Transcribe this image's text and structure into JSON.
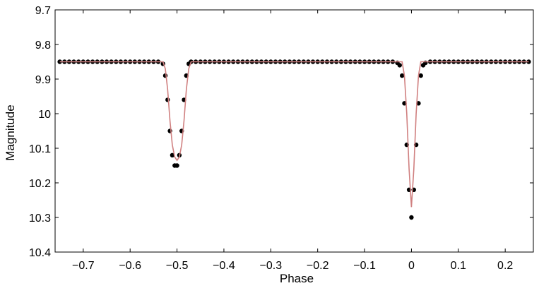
{
  "chart_data": {
    "type": "scatter",
    "title": "",
    "xlabel": "Phase",
    "ylabel": "Magnitude",
    "xlim": [
      -0.76,
      0.26
    ],
    "ylim": [
      10.4,
      9.7
    ],
    "y_axis_reversed": true,
    "grid": false,
    "legend": "none",
    "x_ticks": [
      {
        "value": -0.7,
        "label": "−0.7"
      },
      {
        "value": -0.6,
        "label": "−0.6"
      },
      {
        "value": -0.5,
        "label": "−0.5"
      },
      {
        "value": -0.4,
        "label": "−0.4"
      },
      {
        "value": -0.3,
        "label": "−0.3"
      },
      {
        "value": -0.2,
        "label": "−0.2"
      },
      {
        "value": -0.1,
        "label": "−0.1"
      },
      {
        "value": 0.0,
        "label": "0"
      },
      {
        "value": 0.1,
        "label": "0.1"
      },
      {
        "value": 0.2,
        "label": "0.2"
      }
    ],
    "y_ticks": [
      {
        "value": 9.7,
        "label": "9.7"
      },
      {
        "value": 9.8,
        "label": "9.8"
      },
      {
        "value": 9.9,
        "label": "9.9"
      },
      {
        "value": 10.0,
        "label": "10"
      },
      {
        "value": 10.1,
        "label": "10.1"
      },
      {
        "value": 10.2,
        "label": "10.2"
      },
      {
        "value": 10.3,
        "label": "10.3"
      },
      {
        "value": 10.4,
        "label": "10.4"
      }
    ],
    "series": [
      {
        "kind": "observations",
        "color": "#000000",
        "marker": "dot",
        "x": [
          -0.75,
          -0.74,
          -0.73,
          -0.72,
          -0.71,
          -0.7,
          -0.69,
          -0.68,
          -0.67,
          -0.66,
          -0.65,
          -0.64,
          -0.63,
          -0.62,
          -0.61,
          -0.6,
          -0.59,
          -0.58,
          -0.57,
          -0.56,
          -0.55,
          -0.54,
          -0.53,
          -0.525,
          -0.52,
          -0.515,
          -0.51,
          -0.505,
          -0.5,
          -0.495,
          -0.49,
          -0.485,
          -0.48,
          -0.475,
          -0.47,
          -0.46,
          -0.45,
          -0.44,
          -0.43,
          -0.42,
          -0.41,
          -0.4,
          -0.39,
          -0.38,
          -0.37,
          -0.36,
          -0.35,
          -0.34,
          -0.33,
          -0.32,
          -0.31,
          -0.3,
          -0.29,
          -0.28,
          -0.27,
          -0.26,
          -0.25,
          -0.24,
          -0.23,
          -0.22,
          -0.21,
          -0.2,
          -0.19,
          -0.18,
          -0.17,
          -0.16,
          -0.15,
          -0.14,
          -0.13,
          -0.12,
          -0.11,
          -0.1,
          -0.09,
          -0.08,
          -0.07,
          -0.06,
          -0.05,
          -0.04,
          -0.03,
          -0.025,
          -0.02,
          -0.015,
          -0.01,
          -0.005,
          0.0,
          0.005,
          0.01,
          0.015,
          0.02,
          0.025,
          0.03,
          0.04,
          0.05,
          0.06,
          0.07,
          0.08,
          0.09,
          0.1,
          0.11,
          0.12,
          0.13,
          0.14,
          0.15,
          0.16,
          0.17,
          0.18,
          0.19,
          0.2,
          0.21,
          0.22,
          0.23,
          0.24,
          0.25
        ],
        "y": [
          9.85,
          9.85,
          9.85,
          9.85,
          9.85,
          9.85,
          9.85,
          9.85,
          9.85,
          9.85,
          9.85,
          9.85,
          9.85,
          9.85,
          9.85,
          9.85,
          9.85,
          9.85,
          9.85,
          9.85,
          9.85,
          9.85,
          9.856,
          9.89,
          9.96,
          10.05,
          10.12,
          10.15,
          10.15,
          10.12,
          10.05,
          9.96,
          9.89,
          9.856,
          9.85,
          9.85,
          9.85,
          9.85,
          9.85,
          9.85,
          9.85,
          9.85,
          9.85,
          9.85,
          9.85,
          9.85,
          9.85,
          9.85,
          9.85,
          9.85,
          9.85,
          9.85,
          9.85,
          9.85,
          9.85,
          9.85,
          9.85,
          9.85,
          9.85,
          9.85,
          9.85,
          9.85,
          9.85,
          9.85,
          9.85,
          9.85,
          9.85,
          9.85,
          9.85,
          9.85,
          9.85,
          9.85,
          9.85,
          9.85,
          9.85,
          9.85,
          9.85,
          9.85,
          9.853,
          9.86,
          9.89,
          9.97,
          10.09,
          10.22,
          10.3,
          10.22,
          10.09,
          9.97,
          9.89,
          9.86,
          9.853,
          9.85,
          9.85,
          9.85,
          9.85,
          9.85,
          9.85,
          9.85,
          9.85,
          9.85,
          9.85,
          9.85,
          9.85,
          9.85,
          9.85,
          9.85,
          9.85,
          9.85,
          9.85,
          9.85,
          9.85,
          9.85,
          9.85
        ]
      },
      {
        "kind": "model-fit",
        "color": "#d08080",
        "marker": "line",
        "x": [
          -0.75,
          -0.53,
          -0.525,
          -0.52,
          -0.515,
          -0.51,
          -0.505,
          -0.5,
          -0.495,
          -0.49,
          -0.485,
          -0.48,
          -0.475,
          -0.47,
          -0.02,
          -0.015,
          -0.01,
          -0.005,
          0.0,
          0.005,
          0.01,
          0.015,
          0.02,
          0.25
        ],
        "y": [
          9.85,
          9.85,
          9.87,
          9.93,
          10.02,
          10.09,
          10.125,
          10.135,
          10.125,
          10.09,
          10.02,
          9.93,
          9.87,
          9.85,
          9.85,
          9.89,
          10.0,
          10.16,
          10.27,
          10.16,
          10.0,
          9.89,
          9.85,
          9.85
        ]
      }
    ]
  }
}
